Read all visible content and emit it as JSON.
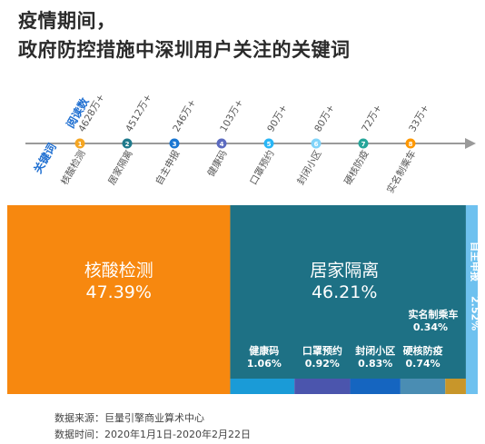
{
  "header": {
    "title_line1": "疫情期间，",
    "title_line2": "政府防控措施中深圳用户关注的关键词"
  },
  "timeline": {
    "reads_label": "阅读数",
    "keyword_label": "关键词",
    "items": [
      {
        "index": "1",
        "keyword": "核酸检测",
        "reads": "4628万+",
        "color": "#f5a623"
      },
      {
        "index": "2",
        "keyword": "居家隔离",
        "reads": "4512万+",
        "color": "#1f7a8c"
      },
      {
        "index": "3",
        "keyword": "自主申报",
        "reads": "246万+",
        "color": "#1976d2"
      },
      {
        "index": "4",
        "keyword": "健康码",
        "reads": "103万+",
        "color": "#5c6bc0"
      },
      {
        "index": "5",
        "keyword": "口罩预约",
        "reads": "90万+",
        "color": "#29b6f6"
      },
      {
        "index": "6",
        "keyword": "封闭小区",
        "reads": "80万+",
        "color": "#81d4fa"
      },
      {
        "index": "7",
        "keyword": "硬核防疫",
        "reads": "72万+",
        "color": "#26a69a"
      },
      {
        "index": "8",
        "keyword": "实名制乘车",
        "reads": "33万+",
        "color": "#ff9800"
      }
    ]
  },
  "chart_data": {
    "type": "mosaic",
    "unit": "%",
    "segments": [
      {
        "name": "核酸检测",
        "value": 47.39,
        "label": "47.39%",
        "color": "#f7880f"
      },
      {
        "name": "居家隔离",
        "value": 46.21,
        "label": "46.21%",
        "color": "#1e7185"
      },
      {
        "name": "自主申报",
        "value": 2.52,
        "label": "2.52%",
        "color": "#6ec1ef"
      },
      {
        "name": "健康码",
        "value": 1.06,
        "label": "1.06%",
        "color": "#1a9bd7"
      },
      {
        "name": "口罩预约",
        "value": 0.92,
        "label": "0.92%",
        "color": "#4b55ad"
      },
      {
        "name": "封闭小区",
        "value": 0.83,
        "label": "0.83%",
        "color": "#1565c0"
      },
      {
        "name": "硬核防疫",
        "value": 0.74,
        "label": "0.74%",
        "color": "#4a8db3"
      },
      {
        "name": "实名制乘车",
        "value": 0.34,
        "label": "0.34%",
        "color": "#c8962a"
      }
    ]
  },
  "footer": {
    "source": "数据来源：巨量引擎商业算术中心",
    "date": "数据时间：2020年1月1日-2020年2月22日"
  }
}
